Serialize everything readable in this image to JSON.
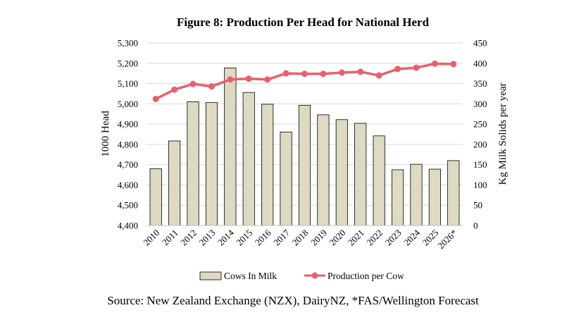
{
  "chart_data": {
    "type": "bar",
    "title": "Figure 8: Production Per Head for National Herd",
    "categories": [
      "2010",
      "2011",
      "2012",
      "2013",
      "2014",
      "2015",
      "2016",
      "2017",
      "2018",
      "2019",
      "2020",
      "2021",
      "2022",
      "2023",
      "2024",
      "2025",
      "2026*"
    ],
    "series": [
      {
        "name": "Cows In Milk",
        "type": "bar",
        "axis": "left",
        "color": "#ddd9c3",
        "values": [
          4680,
          4817,
          5010,
          5006,
          5177,
          5056,
          4998,
          4861,
          4993,
          4946,
          4922,
          4904,
          4842,
          4675,
          4702,
          4678,
          4720
        ]
      },
      {
        "name": "Production per Cow",
        "type": "line",
        "axis": "right",
        "color": "#e8606c",
        "values": [
          312,
          335,
          349,
          343,
          360,
          362,
          360,
          375,
          374,
          374,
          377,
          379,
          370,
          386,
          389,
          399,
          398
        ]
      }
    ],
    "ylabel": "1000 Head",
    "ylim": [
      4400,
      5300
    ],
    "yticks": [
      "4,400",
      "4,500",
      "4,600",
      "4,700",
      "4,800",
      "4,900",
      "5,000",
      "5,100",
      "5,200",
      "5,300"
    ],
    "y2label": "Kg Milk Solids per year",
    "y2lim": [
      0,
      450
    ],
    "y2ticks": [
      "0",
      "50",
      "100",
      "150",
      "200",
      "250",
      "300",
      "350",
      "400",
      "450"
    ],
    "grid": true,
    "legend": "bottom"
  },
  "source": "Source: New Zealand Exchange (NZX), DairyNZ, *FAS/Wellington Forecast"
}
